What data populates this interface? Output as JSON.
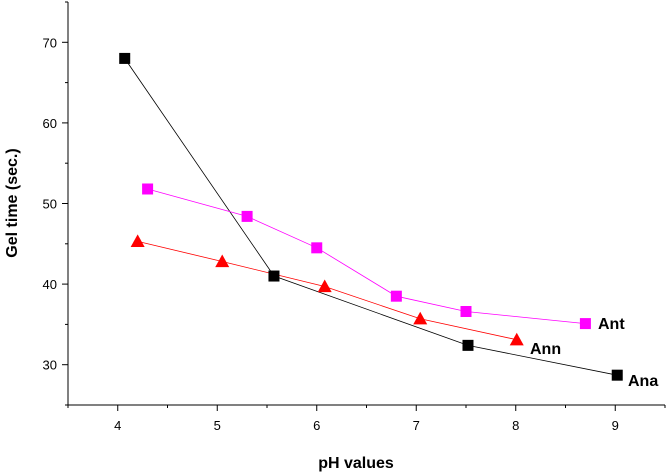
{
  "chart_data": {
    "type": "line",
    "title": "",
    "xlabel": "pH values",
    "ylabel": "Gel time (sec.)",
    "xlim": [
      3.5,
      9.5
    ],
    "ylim": [
      25,
      75
    ],
    "xticks": [
      4,
      5,
      6,
      7,
      8,
      9
    ],
    "yticks": [
      30,
      40,
      50,
      60,
      70
    ],
    "grid": false,
    "series": [
      {
        "name": "Ana",
        "color": "#000000",
        "marker": "square",
        "x": [
          4.07,
          5.57,
          7.52,
          9.02
        ],
        "y": [
          68.0,
          41.0,
          32.4,
          28.7
        ]
      },
      {
        "name": "Ant",
        "color": "#ff00ff",
        "marker": "square",
        "x": [
          4.3,
          5.3,
          6.0,
          6.8,
          7.5,
          8.7
        ],
        "y": [
          51.8,
          48.4,
          44.5,
          38.5,
          36.6,
          35.1
        ]
      },
      {
        "name": "Ann",
        "color": "#ff0000",
        "marker": "triangle",
        "x": [
          4.2,
          5.05,
          6.08,
          7.04,
          8.01
        ],
        "y": [
          45.3,
          42.8,
          39.7,
          35.7,
          33.1
        ]
      }
    ]
  }
}
